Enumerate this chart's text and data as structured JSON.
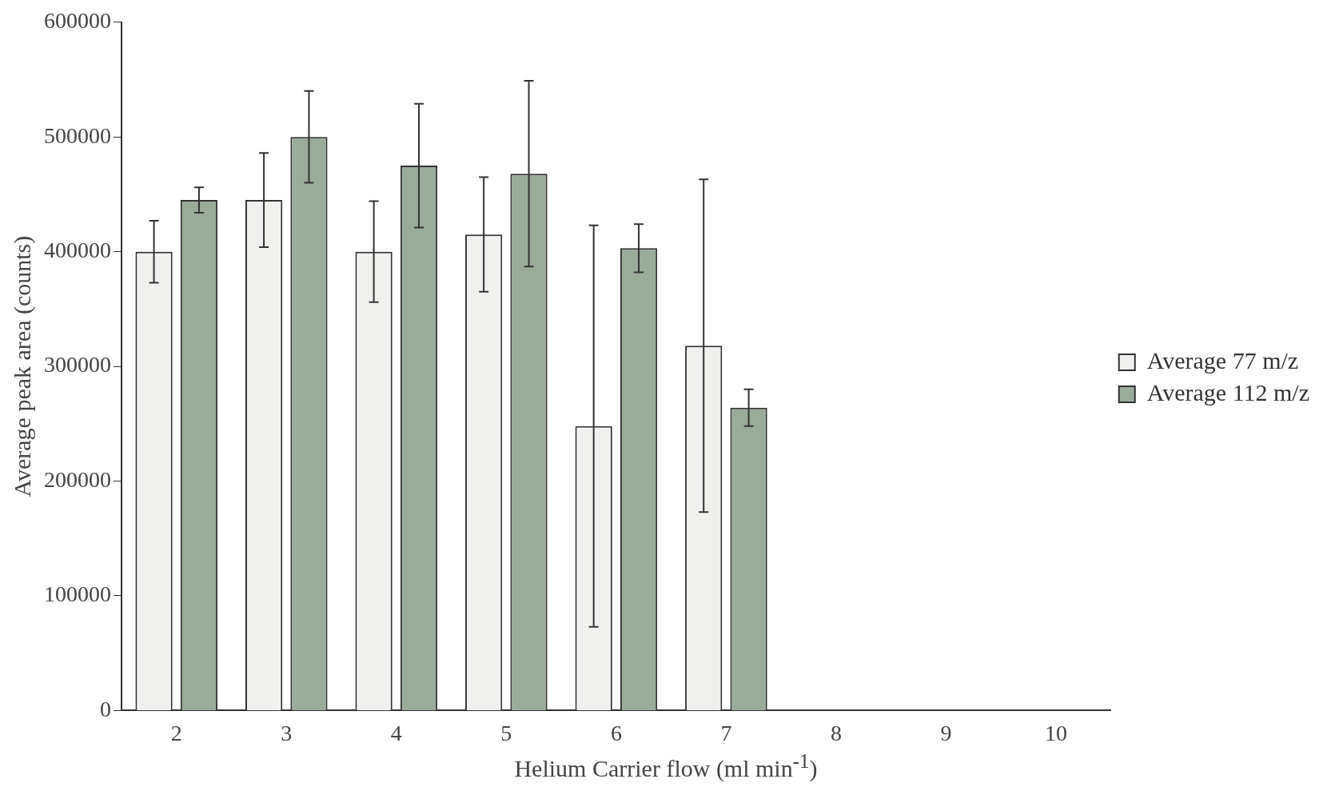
{
  "chart_data": {
    "type": "bar",
    "xlabel": "Helium Carrier flow (ml min$^{-1}$)",
    "ylabel": "Average peak area (counts)",
    "categories": [
      "2",
      "3",
      "4",
      "5",
      "6",
      "7",
      "8",
      "9",
      "10"
    ],
    "series": [
      {
        "name": "Average 77 m/z",
        "color": "#f0f0ee",
        "values": [
          400000,
          445000,
          400000,
          415000,
          248000,
          318000,
          null,
          null,
          null
        ],
        "errors": [
          27000,
          41000,
          44000,
          50000,
          175000,
          145000,
          null,
          null,
          null
        ]
      },
      {
        "name": "Average 112 m/z",
        "color": "#9aab9a",
        "values": [
          445000,
          500000,
          475000,
          468000,
          403000,
          264000,
          null,
          null,
          null
        ],
        "errors": [
          11000,
          40000,
          54000,
          81000,
          21000,
          16000,
          null,
          null,
          null
        ]
      }
    ],
    "ylim": [
      0,
      600000
    ],
    "yticks": [
      0,
      100000,
      200000,
      300000,
      400000,
      500000,
      600000
    ],
    "grid": false,
    "legend": "right"
  }
}
